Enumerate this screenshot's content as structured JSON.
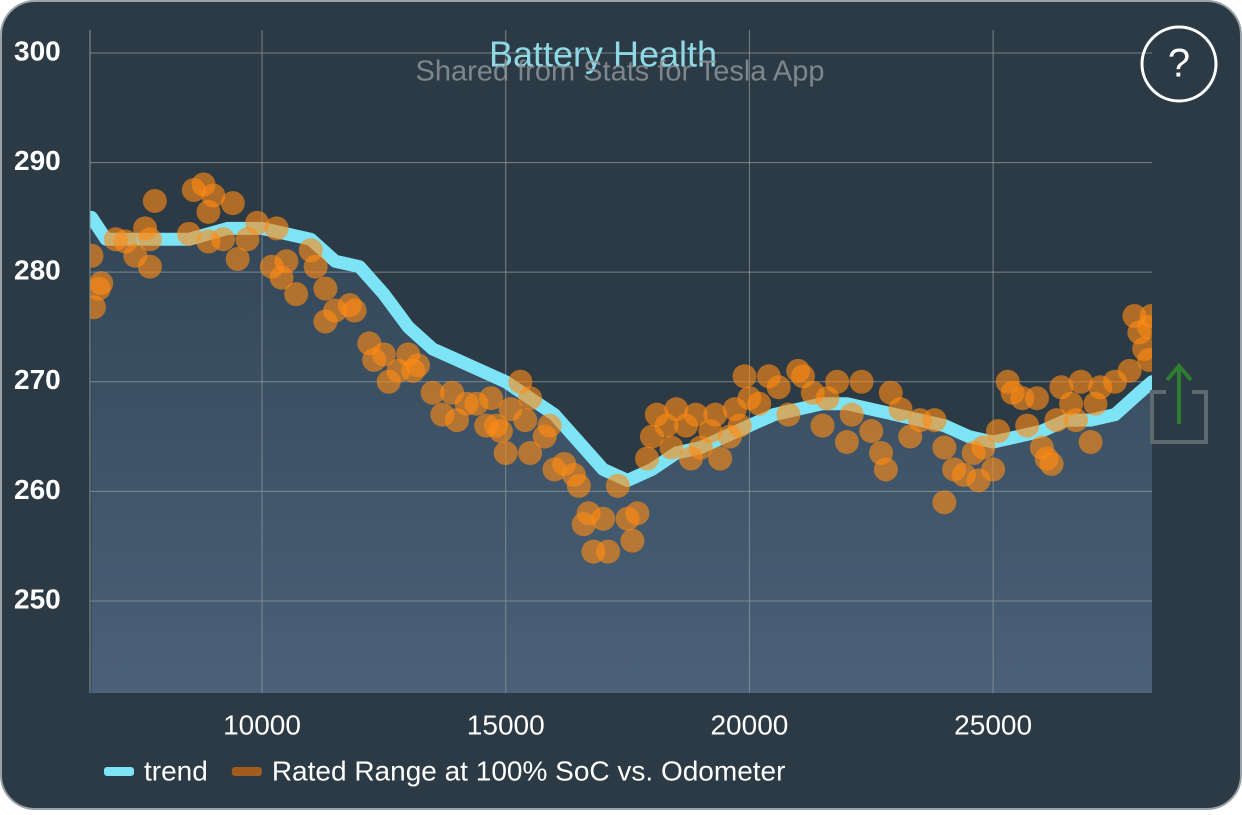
{
  "chart_data": {
    "type": "line",
    "title": "Battery Health",
    "subtitle": "Shared from Stats for Tesla App",
    "xlim": [
      6470,
      28260
    ],
    "ylim": [
      241.6,
      302.1
    ],
    "xticks": [
      10000,
      15000,
      20000,
      25000
    ],
    "yticks": [
      250,
      260,
      270,
      280,
      290,
      300
    ],
    "grid": true,
    "legend": "bottom",
    "series": [
      {
        "name": "trend",
        "type": "line",
        "color": "#7de4f7",
        "x": [
          6500,
          6800,
          7500,
          8500,
          9300,
          10000,
          10500,
          11000,
          11500,
          12000,
          12500,
          13000,
          13500,
          14000,
          14500,
          15000,
          15500,
          16000,
          16500,
          17000,
          17500,
          18000,
          18500,
          19000,
          19500,
          20000,
          20500,
          21000,
          21500,
          22000,
          22500,
          23000,
          23500,
          24000,
          24500,
          25000,
          25500,
          26000,
          26500,
          27000,
          27500,
          28000,
          28260
        ],
        "y": [
          285,
          283,
          283,
          283,
          284,
          284,
          283.5,
          283,
          281,
          280.5,
          278,
          275,
          273,
          272,
          271,
          270,
          268.5,
          267,
          264.5,
          262,
          261,
          262,
          263.5,
          264,
          265,
          266,
          267,
          267.5,
          268,
          268,
          267.5,
          267,
          266.5,
          266,
          265,
          264.5,
          265,
          265.5,
          266.5,
          266.5,
          267,
          269,
          270
        ]
      },
      {
        "name": "Rated Range at 100% SoC vs. Odometer",
        "type": "scatter",
        "color": "#ff8a14",
        "x": [
          6500,
          6550,
          6650,
          6700,
          7000,
          7200,
          7400,
          7600,
          7700,
          7700,
          7800,
          8500,
          8600,
          8800,
          8900,
          9000,
          8900,
          9200,
          9400,
          9500,
          9700,
          9900,
          10200,
          10300,
          10400,
          10500,
          10700,
          11000,
          11100,
          11300,
          11300,
          11500,
          11800,
          11900,
          12200,
          12300,
          12500,
          12600,
          12800,
          13000,
          13100,
          13200,
          13500,
          13700,
          13900,
          14000,
          14200,
          14400,
          14600,
          14700,
          14800,
          14900,
          15000,
          15100,
          15300,
          15400,
          15500,
          15500,
          15800,
          15900,
          16000,
          16200,
          16400,
          16500,
          16600,
          16700,
          16800,
          17000,
          17100,
          17300,
          17500,
          17600,
          17700,
          17900,
          18000,
          18100,
          18300,
          18400,
          18500,
          18700,
          18800,
          18900,
          19000,
          19200,
          19300,
          19400,
          19600,
          19700,
          19800,
          19900,
          20000,
          20200,
          20400,
          20600,
          20800,
          21000,
          21100,
          21300,
          21500,
          21600,
          21800,
          22000,
          22100,
          22300,
          22500,
          22700,
          22800,
          22900,
          23100,
          23300,
          23500,
          23800,
          24000,
          24000,
          24200,
          24400,
          24600,
          24700,
          24800,
          25000,
          25100,
          25300,
          25400,
          25600,
          25700,
          25900,
          26000,
          26100,
          26200,
          26300,
          26400,
          26600,
          26700,
          26800,
          27000,
          27100,
          27200,
          27500,
          27800,
          27900,
          28000,
          28100,
          28200,
          28250,
          28200
        ],
        "y": [
          281.5,
          276.8,
          278.5,
          279,
          283,
          282.8,
          281.5,
          284,
          280.5,
          283,
          286.5,
          283.5,
          287.5,
          288,
          285.5,
          287,
          282.8,
          283,
          286.3,
          281.2,
          283,
          284.5,
          280.5,
          284,
          279.5,
          281,
          278,
          282,
          280.5,
          278.5,
          275.5,
          276.5,
          277,
          276.5,
          273.5,
          272,
          272.5,
          270,
          271,
          272.5,
          271,
          271.5,
          269,
          267,
          269,
          266.5,
          268,
          268,
          266,
          268.5,
          266,
          265.5,
          263.5,
          267.5,
          270,
          266.5,
          268.5,
          263.5,
          265,
          266,
          262,
          262.5,
          261.5,
          260.5,
          257,
          258,
          254.5,
          257.5,
          254.5,
          260.5,
          257.5,
          255.5,
          258,
          263,
          265,
          267,
          266,
          264,
          267.5,
          266,
          263,
          267,
          264,
          265.5,
          267,
          263,
          265,
          267.5,
          266,
          270.5,
          268.5,
          268,
          270.5,
          269.5,
          267,
          271,
          270.5,
          269,
          266,
          268.5,
          270,
          264.5,
          267,
          270,
          265.5,
          263.5,
          262,
          269,
          267.5,
          265,
          266.5,
          266.5,
          264,
          259,
          262,
          261.5,
          263.5,
          261,
          264,
          262,
          265.5,
          270,
          269,
          268.5,
          266,
          268.5,
          264,
          263,
          262.5,
          266.5,
          269.5,
          268,
          266.5,
          270,
          264.5,
          268,
          269.5,
          270,
          271,
          276,
          274.5,
          273,
          275,
          276,
          272
        ]
      }
    ]
  },
  "ui": {
    "help_label": "?"
  }
}
